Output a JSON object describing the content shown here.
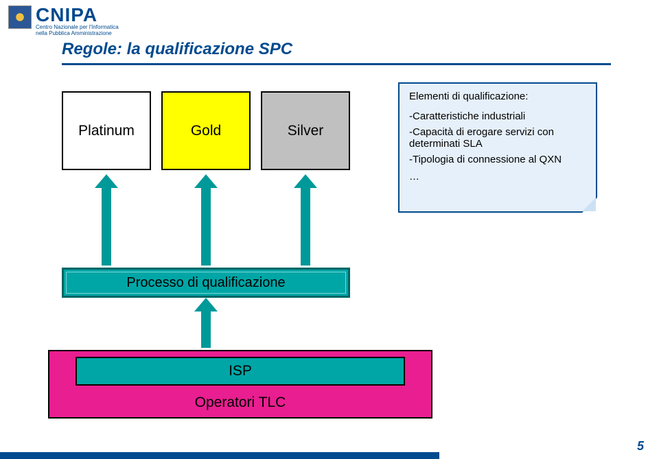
{
  "logo": {
    "main": "CNIPA",
    "sub1": "Centro Nazionale per l'Informatica",
    "sub2": "nella Pubblica Amministrazione"
  },
  "title": "Regole: la qualificazione SPC",
  "tiers": {
    "platinum": {
      "label": "Platinum",
      "bg": "#ffffff"
    },
    "gold": {
      "label": "Gold",
      "bg": "#ffff00"
    },
    "silver": {
      "label": "Silver",
      "bg": "#c0c0c0"
    }
  },
  "elements": {
    "header": "Elementi di qualificazione:",
    "item1": "-Caratteristiche industriali",
    "item2": "-Capacità di erogare servizi con determinati SLA",
    "item3": "-Tipologia di connessione al QXN",
    "ellipsis": "…"
  },
  "process": {
    "label": "Processo di qualificazione"
  },
  "isp": {
    "label": "ISP"
  },
  "tlc": {
    "label": "Operatori TLC"
  },
  "page": {
    "number": "5"
  },
  "colors": {
    "brand": "#004a8f",
    "teal": "#00a6a6",
    "magenta": "#e91e90",
    "arrow": "#009999"
  }
}
